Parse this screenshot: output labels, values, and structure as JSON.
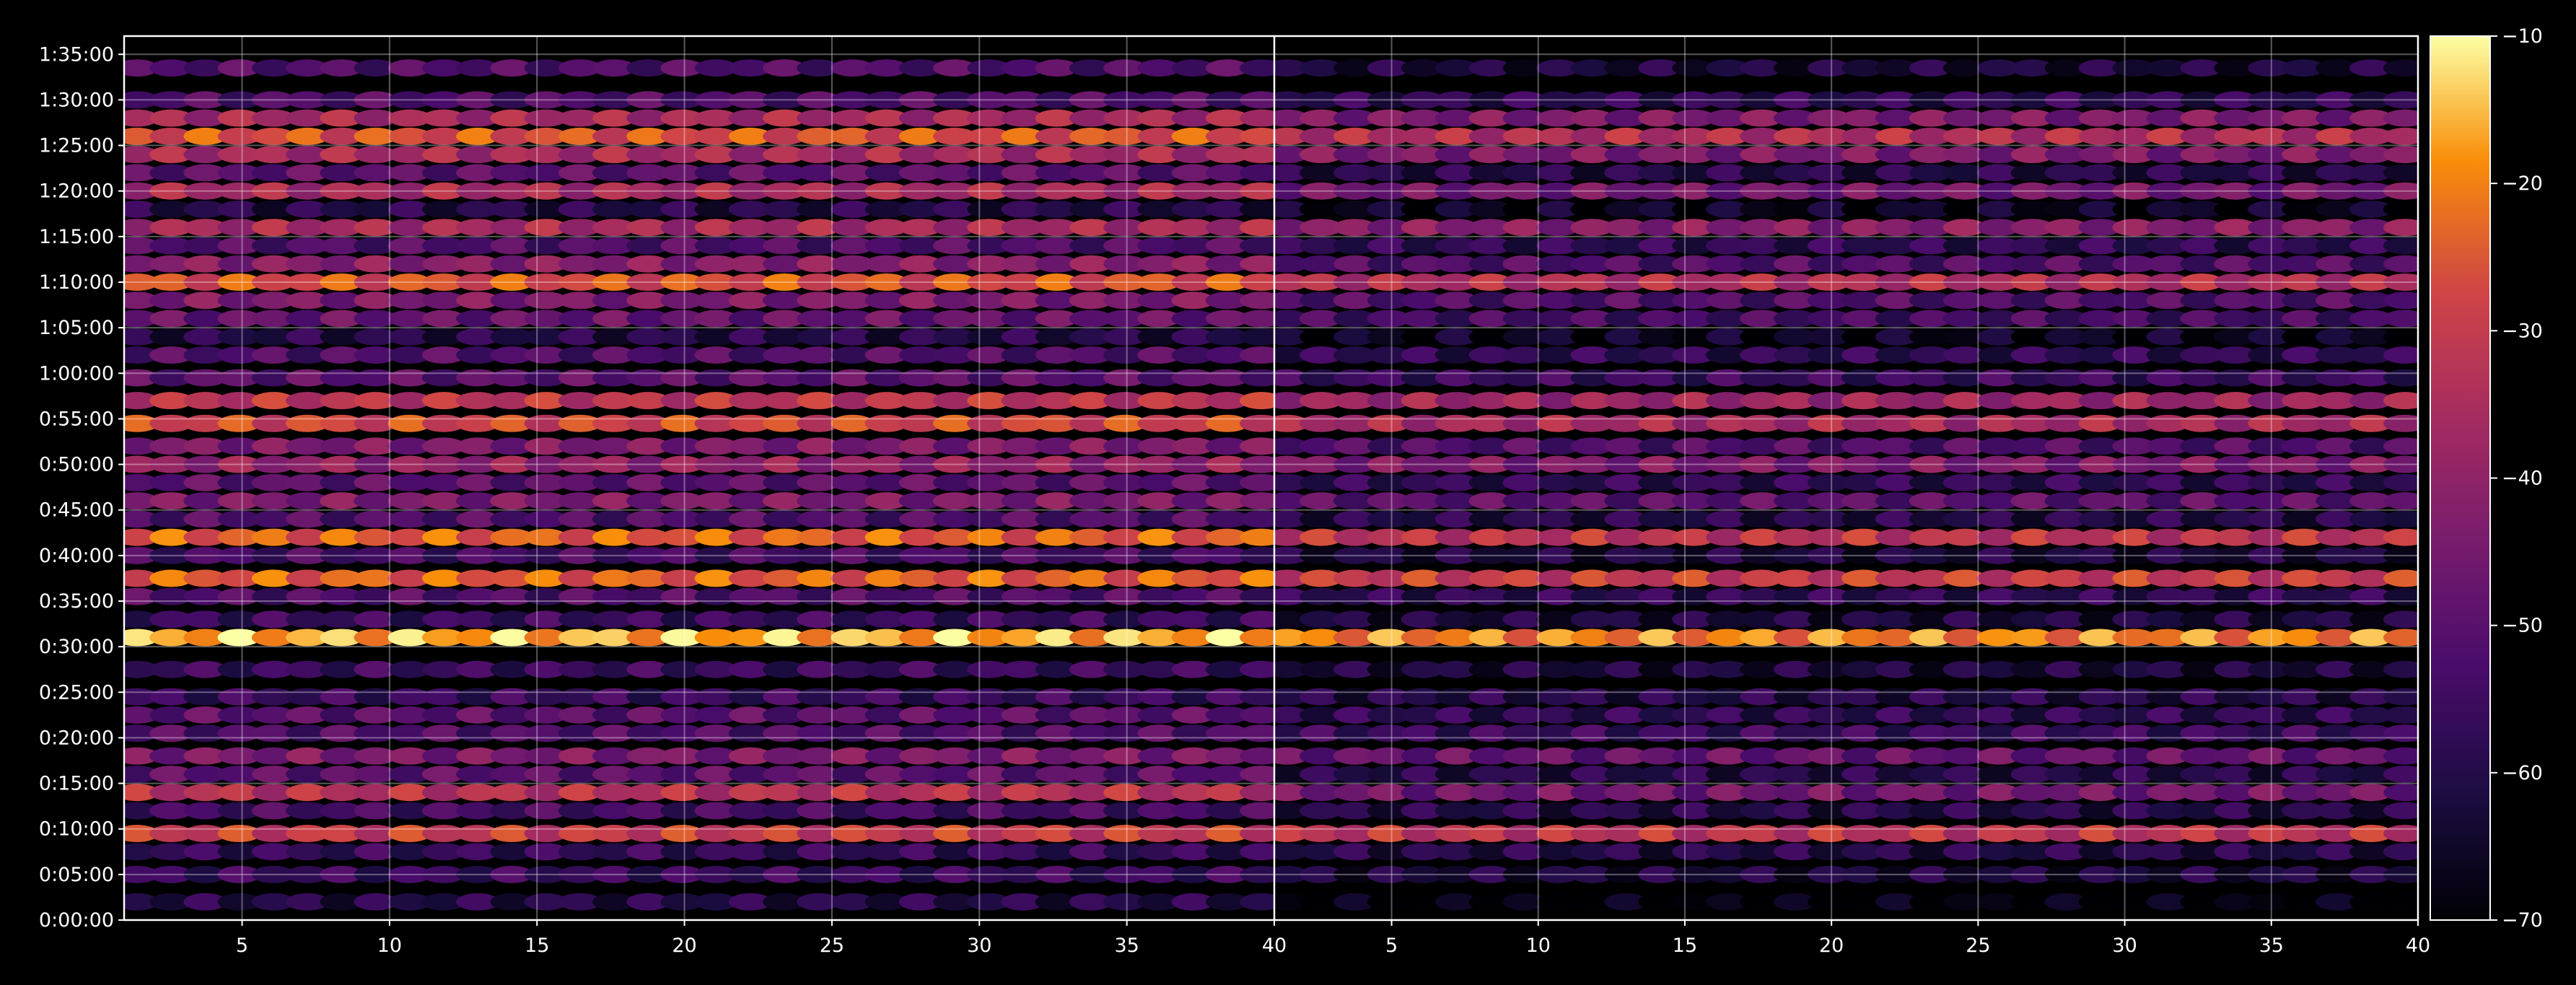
{
  "chart_data": {
    "type": "heatmap",
    "panels": 2,
    "x_ticks": [
      "5",
      "10",
      "15",
      "20",
      "25",
      "30",
      "35",
      "40"
    ],
    "x_range": [
      1,
      40
    ],
    "y_ticks": [
      "0:00:00",
      "0:05:00",
      "0:10:00",
      "0:15:00",
      "0:20:00",
      "0:25:00",
      "0:30:00",
      "0:35:00",
      "0:40:00",
      "0:45:00",
      "0:50:00",
      "0:55:00",
      "1:00:00",
      "1:05:00",
      "1:10:00",
      "1:15:00",
      "1:20:00",
      "1:25:00",
      "1:30:00",
      "1:35:00"
    ],
    "y_range_minutes": [
      0,
      97
    ],
    "colorbar": {
      "colormap": "inferno",
      "range": [
        -70,
        -10
      ],
      "ticks": [
        "-10",
        "-20",
        "-30",
        "-40",
        "-50",
        "-60",
        "-70"
      ]
    },
    "grid": true,
    "band_minutes": [
      2,
      5,
      7.5,
      9.5,
      12,
      14,
      16,
      18,
      20.5,
      22.5,
      24.5,
      27.5,
      31,
      33,
      35.5,
      37.5,
      40,
      42,
      44,
      46,
      48,
      50,
      52,
      54.5,
      57,
      59.5,
      62,
      64,
      66,
      68,
      70,
      72,
      74,
      76,
      78,
      80,
      82,
      84,
      86,
      88,
      90,
      93.5
    ],
    "band_level_left": [
      -60,
      -56,
      -57,
      -30,
      -54,
      -33,
      -50,
      -44,
      -52,
      -50,
      -56,
      -56,
      -16,
      -56,
      -52,
      -24,
      -54,
      -24,
      -52,
      -44,
      -50,
      -40,
      -44,
      -28,
      -32,
      -50,
      -52,
      -60,
      -48,
      -44,
      -26,
      -42,
      -52,
      -36,
      -60,
      -36,
      -50,
      -36,
      -26,
      -36,
      -52,
      -52
    ],
    "band_level_right": [
      -70,
      -62,
      -60,
      -32,
      -60,
      -46,
      -60,
      -48,
      -56,
      -58,
      -60,
      -62,
      -20,
      -62,
      -58,
      -30,
      -62,
      -32,
      -60,
      -50,
      -58,
      -44,
      -52,
      -36,
      -38,
      -56,
      -58,
      -66,
      -54,
      -52,
      -34,
      -52,
      -58,
      -42,
      -66,
      -46,
      -60,
      -44,
      -34,
      -44,
      -58,
      -62
    ]
  }
}
